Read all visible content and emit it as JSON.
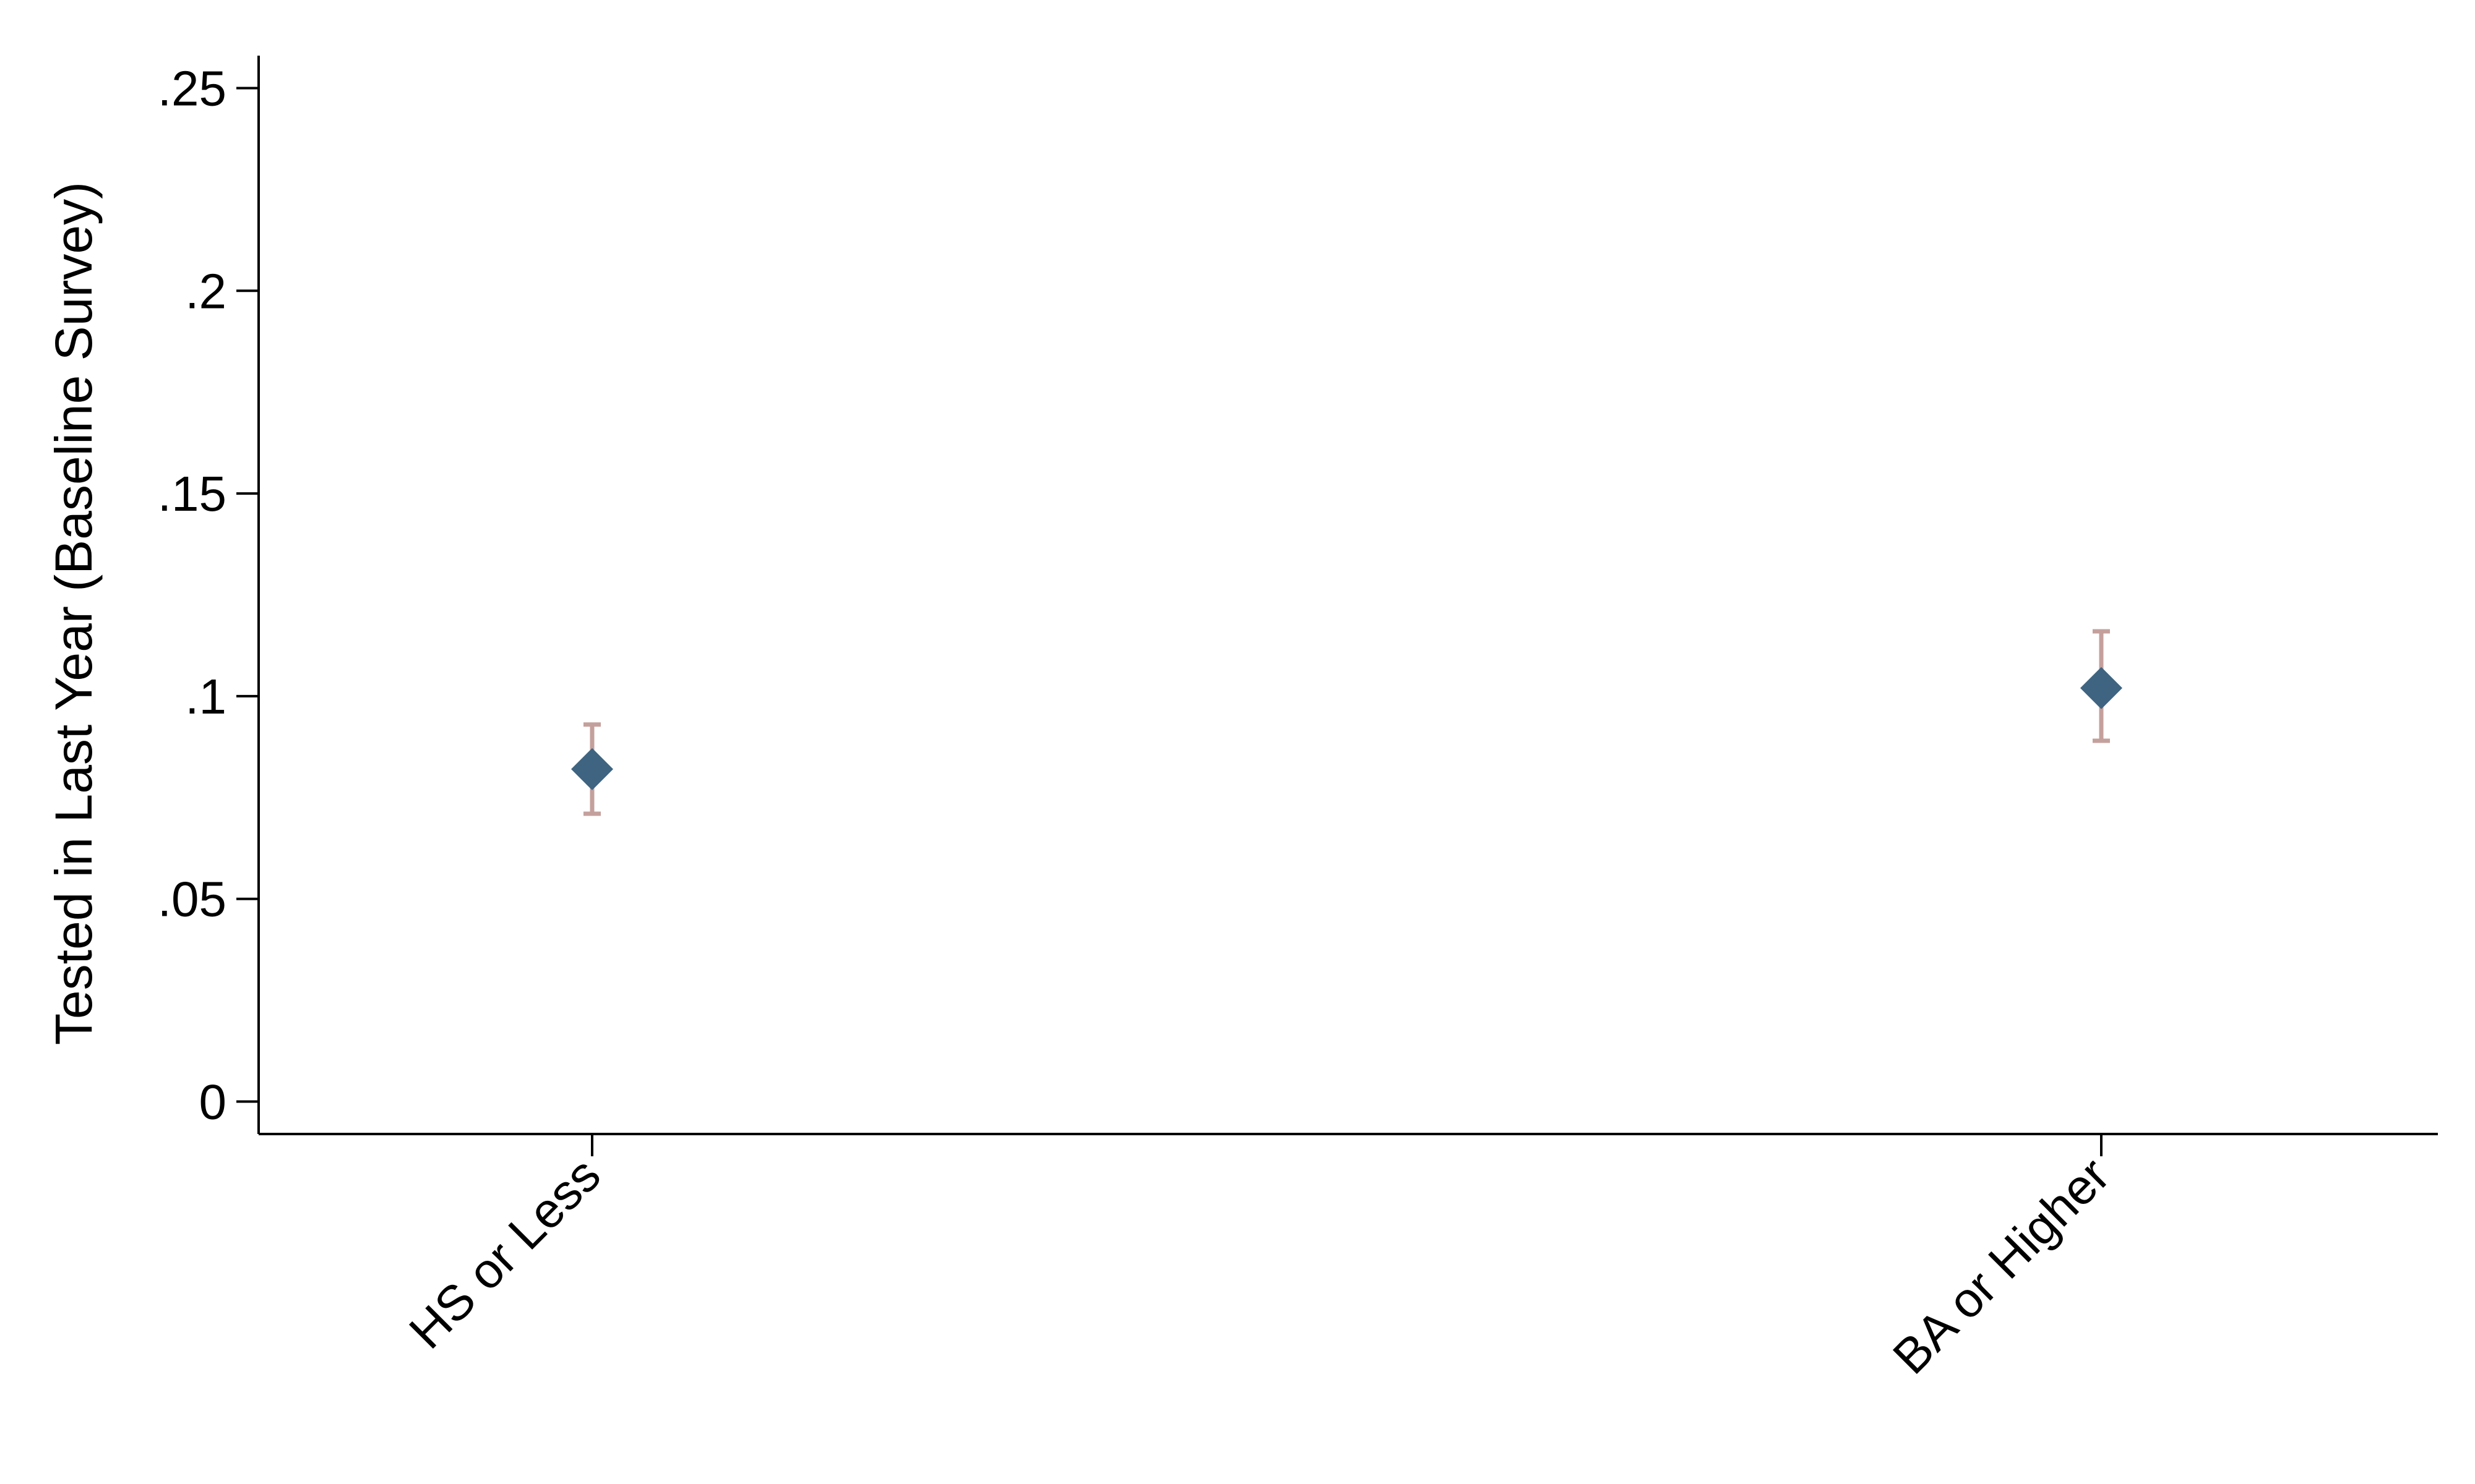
{
  "chart_data": {
    "type": "scatter",
    "title": "",
    "xlabel": "",
    "ylabel": "Tested in Last Year (Baseline Survey)",
    "categories": [
      "HS or Less",
      "BA or Higher"
    ],
    "values": [
      0.082,
      0.102
    ],
    "ci_low": [
      0.071,
      0.089
    ],
    "ci_high": [
      0.093,
      0.116
    ],
    "ylim": [
      -0.008,
      0.258
    ],
    "yticks": [
      0,
      0.05,
      0.1,
      0.15,
      0.2,
      0.25
    ],
    "ytick_labels": [
      "0",
      ".05",
      ".1",
      ".15",
      ".2",
      ".25"
    ],
    "grid": false,
    "legend": "none",
    "marker": "diamond",
    "marker_color": "#3e6481",
    "ci_color": "#c4a09c"
  }
}
